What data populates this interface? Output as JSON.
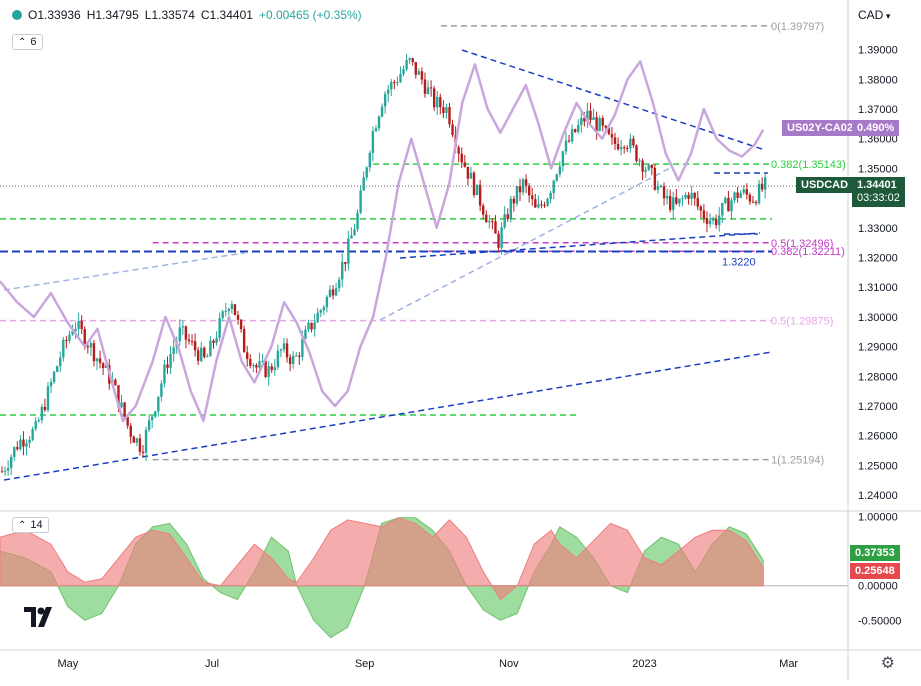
{
  "header": {
    "legend_icon": "eye-dot-icon",
    "open_label": "O",
    "open": "1.33936",
    "high_label": "H",
    "high": "1.34795",
    "low_label": "L",
    "low": "1.33574",
    "close_label": "C",
    "close": "1.34401",
    "change": "+0.00465 (+0.35%)"
  },
  "price_pane": {
    "interval_badge": "6",
    "currency": "CAD",
    "ticks": [
      "1.39000",
      "1.38000",
      "1.37000",
      "1.36000",
      "1.35000",
      "1.34000",
      "1.33000",
      "1.32000",
      "1.31000",
      "1.30000",
      "1.29000",
      "1.28000",
      "1.27000",
      "1.26000",
      "1.25000",
      "1.24000"
    ],
    "last_price_tag": {
      "symbol": "USDCAD",
      "price": "1.34401",
      "countdown": "03:33:02",
      "color": "#1e5a3a"
    },
    "overlay_tag": {
      "symbol": "US02Y-CA02Y",
      "value": "0.490%",
      "color": "#a678c8"
    },
    "fib_labels": [
      "0(1.39797)",
      "0.382(1.35143)",
      "0.5(1.32496)",
      "0.382(1.32211)",
      "0.5(1.29875)",
      "1(1.25194)"
    ],
    "support_label": "1.3220"
  },
  "lower_pane": {
    "interval_badge": "14",
    "ticks": [
      "1.00000",
      "0.50000",
      "0.00000",
      "-0.50000"
    ],
    "tag_positive": {
      "value": "0.37353",
      "color": "#2ea043"
    },
    "tag_negative": {
      "value": "0.25648",
      "color": "#e5484d"
    }
  },
  "x_axis": {
    "labels": [
      "May",
      "Jul",
      "Sep",
      "Nov",
      "2023",
      "Mar"
    ]
  },
  "colors": {
    "up": "#26a69a",
    "down": "#b71c1c",
    "overlay": "#c9a7dd",
    "fib_green": "#2ecc40",
    "fib_gray": "#9e9e9e",
    "fib_pink": "#e6a6e8",
    "fib_magenta": "#c43cc8",
    "trend_blue": "#1a3fbf",
    "trend_light": "#9fb3e3"
  },
  "chart_data": {
    "type": "candlestick",
    "symbol": "USDCAD",
    "currency": "CAD",
    "x_axis_labels": [
      "May",
      "Jul",
      "Sep",
      "Nov",
      "2023",
      "Mar"
    ],
    "ylim": [
      1.235,
      1.405
    ],
    "last": {
      "open": 1.33936,
      "high": 1.34795,
      "low": 1.33574,
      "close": 1.34401,
      "change": 0.00465,
      "change_pct": 0.35
    },
    "close_path": [
      [
        0.0,
        1.248
      ],
      [
        0.02,
        1.258
      ],
      [
        0.04,
        1.262
      ],
      [
        0.055,
        1.275
      ],
      [
        0.07,
        1.288
      ],
      [
        0.085,
        1.298
      ],
      [
        0.1,
        1.292
      ],
      [
        0.115,
        1.285
      ],
      [
        0.13,
        1.278
      ],
      [
        0.15,
        1.262
      ],
      [
        0.165,
        1.256
      ],
      [
        0.18,
        1.27
      ],
      [
        0.195,
        1.285
      ],
      [
        0.21,
        1.295
      ],
      [
        0.225,
        1.29
      ],
      [
        0.24,
        1.285
      ],
      [
        0.255,
        1.296
      ],
      [
        0.27,
        1.307
      ],
      [
        0.285,
        1.29
      ],
      [
        0.3,
        1.283
      ],
      [
        0.315,
        1.282
      ],
      [
        0.33,
        1.289
      ],
      [
        0.345,
        1.285
      ],
      [
        0.36,
        1.295
      ],
      [
        0.375,
        1.302
      ],
      [
        0.39,
        1.31
      ],
      [
        0.405,
        1.32
      ],
      [
        0.42,
        1.335
      ],
      [
        0.435,
        1.36
      ],
      [
        0.45,
        1.375
      ],
      [
        0.465,
        1.38
      ],
      [
        0.48,
        1.386
      ],
      [
        0.495,
        1.38
      ],
      [
        0.51,
        1.372
      ],
      [
        0.525,
        1.37
      ],
      [
        0.54,
        1.355
      ],
      [
        0.555,
        1.345
      ],
      [
        0.57,
        1.335
      ],
      [
        0.585,
        1.325
      ],
      [
        0.6,
        1.338
      ],
      [
        0.615,
        1.345
      ],
      [
        0.63,
        1.335
      ],
      [
        0.645,
        1.342
      ],
      [
        0.66,
        1.355
      ],
      [
        0.675,
        1.362
      ],
      [
        0.69,
        1.368
      ],
      [
        0.705,
        1.364
      ],
      [
        0.72,
        1.358
      ],
      [
        0.735,
        1.36
      ],
      [
        0.75,
        1.354
      ],
      [
        0.765,
        1.348
      ],
      [
        0.78,
        1.34
      ],
      [
        0.795,
        1.337
      ],
      [
        0.81,
        1.342
      ],
      [
        0.825,
        1.335
      ],
      [
        0.84,
        1.332
      ],
      [
        0.855,
        1.338
      ],
      [
        0.87,
        1.342
      ],
      [
        0.885,
        1.34
      ],
      [
        0.9,
        1.344
      ]
    ],
    "overlay_series": {
      "name": "US02Y-CA02Y",
      "last_value_pct": 0.49,
      "path": [
        [
          0.0,
          1.312
        ],
        [
          0.02,
          1.305
        ],
        [
          0.04,
          1.3
        ],
        [
          0.06,
          1.308
        ],
        [
          0.08,
          1.298
        ],
        [
          0.1,
          1.29
        ],
        [
          0.115,
          1.296
        ],
        [
          0.13,
          1.28
        ],
        [
          0.145,
          1.265
        ],
        [
          0.16,
          1.27
        ],
        [
          0.18,
          1.285
        ],
        [
          0.195,
          1.3
        ],
        [
          0.21,
          1.29
        ],
        [
          0.225,
          1.275
        ],
        [
          0.24,
          1.265
        ],
        [
          0.255,
          1.285
        ],
        [
          0.27,
          1.3
        ],
        [
          0.285,
          1.285
        ],
        [
          0.3,
          1.278
        ],
        [
          0.32,
          1.29
        ],
        [
          0.335,
          1.305
        ],
        [
          0.35,
          1.298
        ],
        [
          0.365,
          1.288
        ],
        [
          0.38,
          1.275
        ],
        [
          0.395,
          1.27
        ],
        [
          0.41,
          1.275
        ],
        [
          0.425,
          1.29
        ],
        [
          0.44,
          1.3
        ],
        [
          0.455,
          1.32
        ],
        [
          0.47,
          1.345
        ],
        [
          0.485,
          1.36
        ],
        [
          0.5,
          1.345
        ],
        [
          0.515,
          1.33
        ],
        [
          0.53,
          1.345
        ],
        [
          0.545,
          1.372
        ],
        [
          0.56,
          1.385
        ],
        [
          0.575,
          1.37
        ],
        [
          0.59,
          1.362
        ],
        [
          0.605,
          1.37
        ],
        [
          0.62,
          1.378
        ],
        [
          0.635,
          1.365
        ],
        [
          0.65,
          1.35
        ],
        [
          0.665,
          1.362
        ],
        [
          0.68,
          1.372
        ],
        [
          0.695,
          1.365
        ],
        [
          0.71,
          1.36
        ],
        [
          0.725,
          1.368
        ],
        [
          0.74,
          1.38
        ],
        [
          0.755,
          1.386
        ],
        [
          0.77,
          1.372
        ],
        [
          0.785,
          1.355
        ],
        [
          0.8,
          1.346
        ],
        [
          0.815,
          1.355
        ],
        [
          0.83,
          1.37
        ],
        [
          0.845,
          1.36
        ],
        [
          0.86,
          1.356
        ],
        [
          0.875,
          1.354
        ],
        [
          0.89,
          1.358
        ],
        [
          0.9,
          1.363
        ]
      ]
    },
    "fib_levels": [
      {
        "label": "0(1.39797)",
        "value": 1.39797,
        "color": "#9e9e9e"
      },
      {
        "label": "0.382(1.35143)",
        "value": 1.35143,
        "color": "#2ecc40"
      },
      {
        "label": "0.5(1.32496)",
        "value": 1.32496,
        "color": "#c43cc8"
      },
      {
        "label": "0.382(1.32211)",
        "value": 1.32211,
        "color": "#c43cc8"
      },
      {
        "label": "0.5(1.29875)",
        "value": 1.29875,
        "color": "#e6a6e8"
      },
      {
        "label": "1(1.25194)",
        "value": 1.25194,
        "color": "#9e9e9e"
      }
    ],
    "horizontal_levels": [
      {
        "value": 1.333,
        "color": "#2ecc40"
      },
      {
        "value": 1.267,
        "color": "#2ecc40"
      }
    ],
    "support_level": {
      "label": "1.3220",
      "value": 1.322
    },
    "correlation": {
      "period": 14,
      "ylim": [
        -0.9,
        1.05
      ],
      "last_values": [
        0.37353,
        0.25648
      ],
      "series_a": [
        [
          0.0,
          0.5
        ],
        [
          0.03,
          0.4
        ],
        [
          0.06,
          0.2
        ],
        [
          0.08,
          -0.3
        ],
        [
          0.1,
          -0.5
        ],
        [
          0.12,
          -0.4
        ],
        [
          0.14,
          0.0
        ],
        [
          0.16,
          0.6
        ],
        [
          0.18,
          0.85
        ],
        [
          0.2,
          0.9
        ],
        [
          0.22,
          0.6
        ],
        [
          0.24,
          0.1
        ],
        [
          0.26,
          -0.1
        ],
        [
          0.28,
          -0.2
        ],
        [
          0.3,
          0.2
        ],
        [
          0.32,
          0.7
        ],
        [
          0.34,
          0.5
        ],
        [
          0.35,
          0.0
        ],
        [
          0.37,
          -0.5
        ],
        [
          0.39,
          -0.75
        ],
        [
          0.41,
          -0.6
        ],
        [
          0.43,
          0.0
        ],
        [
          0.45,
          0.9
        ],
        [
          0.47,
          0.98
        ],
        [
          0.49,
          0.98
        ],
        [
          0.51,
          0.8
        ],
        [
          0.53,
          0.5
        ],
        [
          0.55,
          0.0
        ],
        [
          0.57,
          -0.35
        ],
        [
          0.59,
          -0.5
        ],
        [
          0.61,
          -0.4
        ],
        [
          0.63,
          0.2
        ],
        [
          0.65,
          0.6
        ],
        [
          0.66,
          0.85
        ],
        [
          0.68,
          0.7
        ],
        [
          0.7,
          0.4
        ],
        [
          0.72,
          0.0
        ],
        [
          0.74,
          -0.1
        ],
        [
          0.76,
          0.5
        ],
        [
          0.78,
          0.7
        ],
        [
          0.8,
          0.6
        ],
        [
          0.82,
          0.2
        ],
        [
          0.84,
          0.6
        ],
        [
          0.86,
          0.85
        ],
        [
          0.88,
          0.75
        ],
        [
          0.9,
          0.37
        ]
      ],
      "series_b": [
        [
          0.0,
          0.7
        ],
        [
          0.03,
          0.8
        ],
        [
          0.06,
          0.6
        ],
        [
          0.08,
          0.2
        ],
        [
          0.1,
          0.05
        ],
        [
          0.12,
          0.1
        ],
        [
          0.14,
          0.4
        ],
        [
          0.16,
          0.7
        ],
        [
          0.18,
          0.8
        ],
        [
          0.2,
          0.75
        ],
        [
          0.22,
          0.4
        ],
        [
          0.24,
          0.05
        ],
        [
          0.26,
          0.0
        ],
        [
          0.28,
          0.3
        ],
        [
          0.3,
          0.6
        ],
        [
          0.32,
          0.4
        ],
        [
          0.34,
          0.1
        ],
        [
          0.35,
          0.05
        ],
        [
          0.37,
          0.4
        ],
        [
          0.39,
          0.8
        ],
        [
          0.41,
          0.95
        ],
        [
          0.43,
          0.9
        ],
        [
          0.45,
          0.85
        ],
        [
          0.47,
          0.98
        ],
        [
          0.49,
          0.9
        ],
        [
          0.51,
          0.7
        ],
        [
          0.53,
          0.95
        ],
        [
          0.55,
          0.7
        ],
        [
          0.57,
          0.2
        ],
        [
          0.59,
          -0.2
        ],
        [
          0.61,
          0.0
        ],
        [
          0.63,
          0.6
        ],
        [
          0.65,
          0.8
        ],
        [
          0.66,
          0.6
        ],
        [
          0.68,
          0.4
        ],
        [
          0.7,
          0.65
        ],
        [
          0.72,
          0.9
        ],
        [
          0.74,
          0.8
        ],
        [
          0.76,
          0.4
        ],
        [
          0.78,
          0.3
        ],
        [
          0.8,
          0.5
        ],
        [
          0.82,
          0.7
        ],
        [
          0.84,
          0.8
        ],
        [
          0.86,
          0.8
        ],
        [
          0.88,
          0.65
        ],
        [
          0.9,
          0.26
        ]
      ]
    }
  }
}
